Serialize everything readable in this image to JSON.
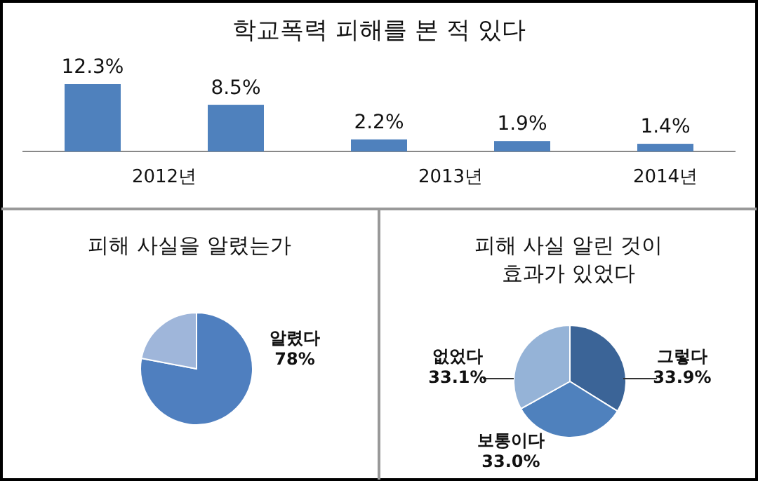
{
  "chart_data": [
    {
      "type": "bar",
      "title": "학교폭력 피해를 본 적 있다",
      "categories": [
        null,
        null,
        null,
        null,
        null
      ],
      "values": [
        12.3,
        8.5,
        2.2,
        1.9,
        1.4
      ],
      "value_labels": [
        "12.3%",
        "8.5%",
        "2.2%",
        "1.9%",
        "1.4%"
      ],
      "color": "#4f81bd",
      "annotations": [
        "2012년",
        "2013년",
        "2014년"
      ]
    },
    {
      "type": "pie",
      "title": "피해 사실을 알렸는가",
      "categories": [
        "알렸다",
        null
      ],
      "values": [
        78,
        22
      ],
      "colors": [
        "#4f7fbf",
        "#9fb6da"
      ],
      "value_labels": [
        "78%",
        null
      ]
    },
    {
      "type": "pie",
      "title": "피해 사실 알린 것이\n효과가 있었다",
      "categories": [
        "그렇다",
        "보통이다",
        "없었다"
      ],
      "values": [
        33.9,
        33.0,
        33.1
      ],
      "colors": [
        "#3b6497",
        "#4f81bd",
        "#95b3d7"
      ],
      "value_labels": [
        "33.9%",
        "33.0%",
        "33.1%"
      ]
    }
  ]
}
